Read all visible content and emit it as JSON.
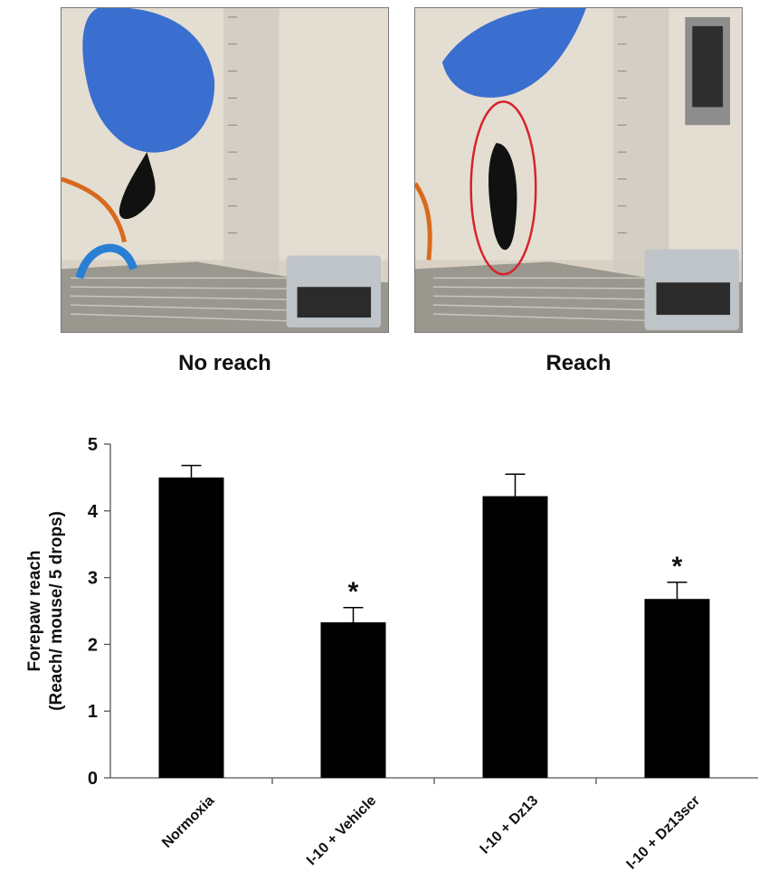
{
  "photos": [
    {
      "caption": "No reach"
    },
    {
      "caption": "Reach"
    }
  ],
  "chart_data": {
    "type": "bar",
    "title": "",
    "xlabel": "",
    "ylabel": "Forepaw reach",
    "ylabel2": "(Reach/ mouse/ 5 drops)",
    "categories": [
      "Normoxia",
      "I-10 + Vehicle",
      "I-10 + Dz13",
      "I-10 + Dz13scr"
    ],
    "values": [
      4.5,
      2.33,
      4.22,
      2.68
    ],
    "errors": [
      0.18,
      0.22,
      0.33,
      0.25
    ],
    "significance": [
      "",
      "*",
      "",
      "*"
    ],
    "ylim": [
      0,
      5
    ],
    "yticks": [
      0,
      1,
      2,
      3,
      4,
      5
    ],
    "bar_color": "#000000",
    "grid": false
  }
}
